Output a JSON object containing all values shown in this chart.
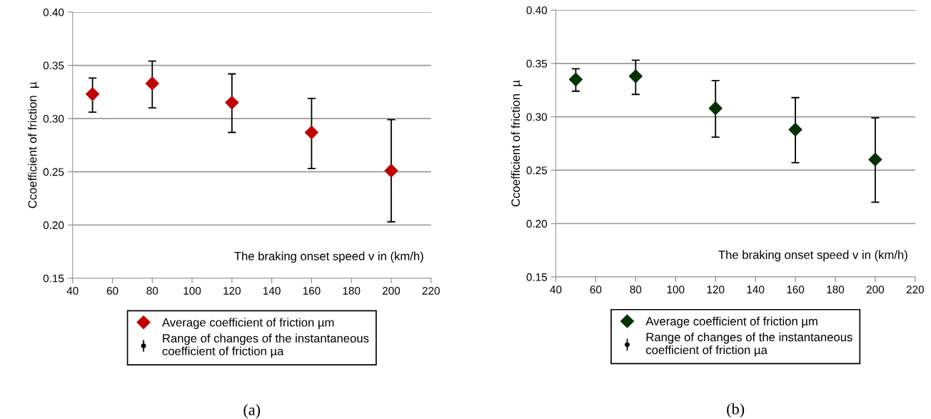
{
  "chart_data": [
    {
      "type": "scatter",
      "ylabel": "Ccoefficient of friction  µ",
      "xlabel": "The braking onset speed v in (km/h)",
      "x": [
        50,
        80,
        120,
        160,
        200
      ],
      "series": [
        {
          "name": "Average coefficient of friction µm",
          "color": "#c00000",
          "values": [
            0.323,
            0.333,
            0.315,
            0.287,
            0.251
          ],
          "errors": [
            [
              0.306,
              0.338
            ],
            [
              0.31,
              0.354
            ],
            [
              0.287,
              0.342
            ],
            [
              0.253,
              0.319
            ],
            [
              0.203,
              0.299
            ]
          ]
        }
      ],
      "xlim": [
        40,
        220
      ],
      "xticks": [
        40,
        60,
        80,
        100,
        120,
        140,
        160,
        180,
        200,
        220
      ],
      "ylim": [
        0.15,
        0.4
      ],
      "yticks": [
        {
          "value": 0.15,
          "label": "0.15"
        },
        {
          "value": 0.2,
          "label": "0.20"
        },
        {
          "value": 0.25,
          "label": "0.25"
        },
        {
          "value": 0.3,
          "label": "0.30"
        },
        {
          "value": 0.35,
          "label": "0.35"
        },
        {
          "value": 0.4,
          "label": "0.40"
        }
      ],
      "grid": "y",
      "legend": "bottom",
      "marker": "diamond",
      "annotations": [
        "Range of changes of the instantaneous\ncoefficient of friction µa",
        "(a)"
      ]
    },
    {
      "type": "scatter",
      "ylabel": "Ccoefficient of friction  µ",
      "xlabel": "The braking onset speed v in (km/h)",
      "x": [
        50,
        80,
        120,
        160,
        200
      ],
      "series": [
        {
          "name": "Average coefficient of friction µm",
          "color": "#003300",
          "values": [
            0.335,
            0.338,
            0.308,
            0.288,
            0.26
          ],
          "errors": [
            [
              0.324,
              0.345
            ],
            [
              0.321,
              0.353
            ],
            [
              0.281,
              0.334
            ],
            [
              0.257,
              0.318
            ],
            [
              0.22,
              0.299
            ]
          ]
        }
      ],
      "xlim": [
        40,
        220
      ],
      "xticks": [
        40,
        60,
        80,
        100,
        120,
        140,
        160,
        180,
        200,
        220
      ],
      "ylim": [
        0.15,
        0.4
      ],
      "yticks": [
        {
          "value": 0.15,
          "label": "0.15"
        },
        {
          "value": 0.2,
          "label": "0.20"
        },
        {
          "value": 0.25,
          "label": "0.25"
        },
        {
          "value": 0.3,
          "label": "0.30"
        },
        {
          "value": 0.35,
          "label": "0.35"
        },
        {
          "value": 0.4,
          "label": "0.40"
        }
      ],
      "grid": "y",
      "legend": "bottom",
      "marker": "diamond",
      "annotations": [
        "Range of changes of the instantaneous\ncoefficient of friction µa",
        "(b)"
      ]
    }
  ]
}
